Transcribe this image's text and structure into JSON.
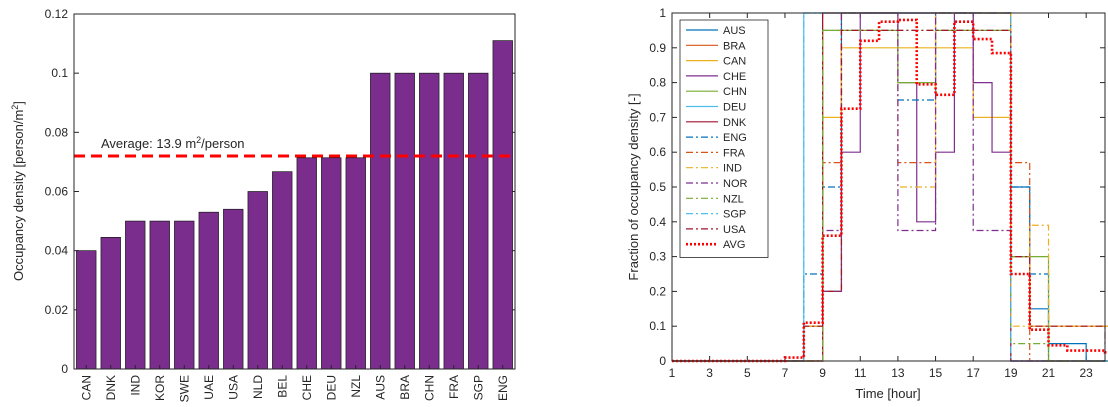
{
  "chart_data": [
    {
      "type": "bar",
      "title": "",
      "xlabel": "",
      "ylabel": "Occupancy density [person/m",
      "ylabel_sup": "2",
      "ylabel_end": "]",
      "categories": [
        "CAN",
        "DNK",
        "IND",
        "KOR",
        "SWE",
        "UAE",
        "USA",
        "NLD",
        "BEL",
        "CHE",
        "DEU",
        "NZL",
        "AUS",
        "BRA",
        "CHN",
        "FRA",
        "SGP",
        "ENG"
      ],
      "values": [
        0.04,
        0.0445,
        0.05,
        0.05,
        0.05,
        0.053,
        0.054,
        0.06,
        0.0667,
        0.0714,
        0.0714,
        0.0714,
        0.1,
        0.1,
        0.1,
        0.1,
        0.1,
        0.111
      ],
      "ylim": [
        0,
        0.12
      ],
      "yticks": [
        0,
        0.02,
        0.04,
        0.06,
        0.08,
        0.1,
        0.12
      ],
      "ytick_labels": [
        "0",
        "0.02",
        "0.04",
        "0.06",
        "0.08",
        "0.1",
        "0.12"
      ],
      "bar_color": "#7b2d8e",
      "average": {
        "value": 0.072,
        "label_pre": "Average: 13.9 m",
        "label_sup": "2",
        "label_post": "/person",
        "color": "#ff0000"
      }
    },
    {
      "type": "line",
      "title": "",
      "xlabel": "Time [hour]",
      "ylabel": "Fraction of occupancy density [-]",
      "xlim": [
        1,
        24
      ],
      "ylim": [
        0,
        1
      ],
      "xticks": [
        1,
        3,
        5,
        7,
        9,
        11,
        13,
        15,
        17,
        19,
        21,
        23
      ],
      "yticks": [
        0,
        0.1,
        0.2,
        0.3,
        0.4,
        0.5,
        0.6,
        0.7,
        0.8,
        0.9,
        1
      ],
      "ytick_labels": [
        "0",
        "0.1",
        "0.2",
        "0.3",
        "0.4",
        "0.5",
        "0.6",
        "0.7",
        "0.8",
        "0.9",
        "1"
      ],
      "legend_position": "top-left",
      "series": [
        {
          "name": "AUS",
          "color": "#0072bd",
          "dash": "solid",
          "values": [
            0,
            0,
            0,
            0,
            0,
            0,
            0,
            0.1,
            0.2,
            1,
            1,
            1,
            1,
            1,
            1,
            1,
            1,
            1,
            0.5,
            0.15,
            0.05,
            0.05,
            0,
            0
          ]
        },
        {
          "name": "BRA",
          "color": "#d95319",
          "dash": "solid",
          "values": [
            0,
            0,
            0,
            0,
            0,
            0,
            0,
            0.1,
            1,
            1,
            1,
            1,
            1,
            1,
            1,
            1,
            1,
            1,
            0.3,
            0.1,
            0.1,
            0.1,
            0.1,
            0.1
          ]
        },
        {
          "name": "CAN",
          "color": "#edb120",
          "dash": "solid",
          "values": [
            0,
            0,
            0,
            0,
            0,
            0,
            0,
            0.1,
            0.7,
            0.9,
            0.9,
            0.9,
            0.9,
            0.9,
            0.9,
            0.9,
            0.7,
            0.7,
            0.3,
            0.1,
            0.1,
            0.1,
            0.1,
            0.1
          ]
        },
        {
          "name": "CHE",
          "color": "#7e2f8e",
          "dash": "solid",
          "values": [
            0,
            0,
            0,
            0,
            0,
            0,
            0,
            0,
            0.2,
            0.6,
            1,
            1,
            0.8,
            0.4,
            0.6,
            1,
            0.8,
            0.6,
            0,
            0,
            0,
            0,
            0,
            0
          ]
        },
        {
          "name": "CHN",
          "color": "#77ac30",
          "dash": "solid",
          "values": [
            0,
            0,
            0,
            0,
            0,
            0,
            0,
            0,
            0.95,
            0.95,
            0.95,
            0.95,
            0.8,
            0.8,
            0.95,
            0.95,
            0.95,
            0.95,
            0.3,
            0.3,
            0,
            0,
            0,
            0
          ]
        },
        {
          "name": "DEU",
          "color": "#4dbeee",
          "dash": "solid",
          "values": [
            0,
            0,
            0,
            0,
            0,
            0,
            0,
            1,
            1,
            1,
            1,
            1,
            1,
            1,
            1,
            1,
            1,
            1,
            0,
            0,
            0,
            0,
            0,
            0
          ]
        },
        {
          "name": "DNK",
          "color": "#a2142f",
          "dash": "solid",
          "values": [
            0,
            0,
            0,
            0,
            0,
            0,
            0,
            0,
            1,
            1,
            1,
            1,
            1,
            1,
            1,
            1,
            1,
            1,
            0,
            0,
            0,
            0,
            0,
            0
          ]
        },
        {
          "name": "ENG",
          "color": "#0072bd",
          "dash": "dashdot",
          "values": [
            0,
            0,
            0,
            0,
            0,
            0,
            0,
            0.25,
            0.5,
            1,
            1,
            1,
            0.75,
            0.75,
            1,
            1,
            1,
            1,
            0.5,
            0.25,
            0,
            0,
            0,
            0
          ]
        },
        {
          "name": "FRA",
          "color": "#d95319",
          "dash": "dashdot",
          "values": [
            0,
            0,
            0,
            0,
            0,
            0,
            0,
            0,
            0.57,
            1,
            1,
            1,
            0.57,
            0.57,
            1,
            1,
            1,
            1,
            0.57,
            0,
            0,
            0,
            0,
            0
          ]
        },
        {
          "name": "IND",
          "color": "#edb120",
          "dash": "dashdot",
          "values": [
            0,
            0,
            0,
            0,
            0,
            0,
            0,
            0,
            0.2,
            1,
            1,
            1,
            0.5,
            0.5,
            1,
            1,
            1,
            1,
            0.1,
            0.39,
            0,
            0,
            0,
            0
          ]
        },
        {
          "name": "NOR",
          "color": "#7e2f8e",
          "dash": "dashdot",
          "values": [
            0,
            0,
            0,
            0,
            0,
            0,
            0,
            0,
            0.375,
            1,
            1,
            1,
            0.375,
            0.375,
            1,
            1,
            0.375,
            0.375,
            0,
            0,
            0,
            0,
            0,
            0
          ]
        },
        {
          "name": "NZL",
          "color": "#77ac30",
          "dash": "dashdot",
          "values": [
            0,
            0,
            0,
            0,
            0,
            0,
            0,
            0,
            0.95,
            0.95,
            0.95,
            0.95,
            0.95,
            0.95,
            0.95,
            0.95,
            0.95,
            0.95,
            0.05,
            0.05,
            0,
            0,
            0,
            0
          ]
        },
        {
          "name": "SGP",
          "color": "#4dbeee",
          "dash": "dashdot",
          "values": [
            0,
            0,
            0,
            0,
            0,
            0,
            0,
            1,
            1,
            1,
            1,
            1,
            1,
            1,
            1,
            1,
            1,
            1,
            0,
            0,
            0,
            0,
            0,
            0
          ]
        },
        {
          "name": "USA",
          "color": "#a2142f",
          "dash": "dashdot",
          "values": [
            0,
            0,
            0,
            0,
            0,
            0,
            0,
            0.1,
            0.2,
            0.95,
            0.95,
            0.95,
            0.95,
            0.95,
            0.95,
            0.95,
            0.95,
            0.95,
            0.3,
            0.1,
            0.1,
            0.1,
            0.1,
            0.05
          ]
        },
        {
          "name": "AVG",
          "color": "#ff0000",
          "dash": "dotted",
          "values": [
            0,
            0,
            0,
            0,
            0,
            0,
            0.01,
            0.11,
            0.36,
            0.725,
            0.92,
            0.975,
            0.98,
            0.795,
            0.765,
            0.975,
            0.925,
            0.885,
            0.25,
            0.09,
            0.045,
            0.03,
            0.03,
            0.025
          ]
        }
      ]
    }
  ]
}
